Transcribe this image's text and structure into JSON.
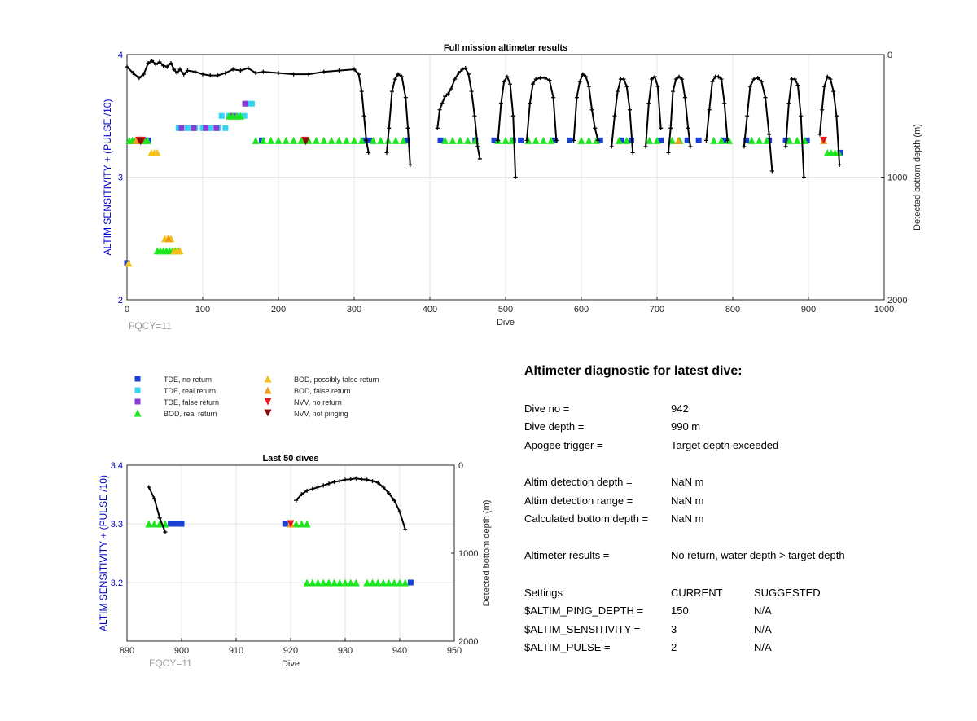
{
  "colors": {
    "axis_left": "#0000cc",
    "grid": "#e6e6e6",
    "fqcy": "#a0a0a0",
    "depth_curve": "#000000",
    "TDE, no return": "#1a3fd6",
    "TDE, real return": "#33d6f2",
    "TDE, false return": "#8a3ad6",
    "BOD, real return": "#1ee61e",
    "BOD, possibly false return": "#f2c21a",
    "BOD, false return": "#f29a1a",
    "NVV, no return": "#e61a1a",
    "NVV, not pinging": "#8a0a0a"
  },
  "legend": [
    {
      "label": "TDE, no return",
      "icon": "square"
    },
    {
      "label": "TDE, real return",
      "icon": "square"
    },
    {
      "label": "TDE, false return",
      "icon": "square"
    },
    {
      "label": "BOD, real return",
      "icon": "triangle-up"
    },
    {
      "label": "BOD, possibly false return",
      "icon": "triangle-up"
    },
    {
      "label": "BOD, false return",
      "icon": "triangle-up"
    },
    {
      "label": "NVV, no return",
      "icon": "triangle-down"
    },
    {
      "label": "NVV, not pinging",
      "icon": "triangle-down"
    }
  ],
  "chart_data": [
    {
      "id": "full",
      "type": "scatter",
      "title": "Full mission altimeter results",
      "xlabel": "Dive",
      "ylabel": "ALTIM SENSITIVITY + (PULSE /10)",
      "y2label": "Detected bottom depth (m)",
      "note": "FQCY=11",
      "xlim": [
        0,
        1000
      ],
      "ylim": [
        2,
        4
      ],
      "y2lim": [
        0,
        2000
      ],
      "y2_reversed": true,
      "xticks": [
        "0",
        "100",
        "200",
        "300",
        "400",
        "500",
        "600",
        "700",
        "800",
        "900",
        "1000"
      ],
      "yticks": [
        "2",
        "3",
        "4"
      ],
      "y2ticks": [
        "0",
        "1000",
        "2000"
      ],
      "grid": true,
      "marker_series": [
        {
          "name": "TDE, no return",
          "x": [
            0,
            28,
            178,
            312,
            320,
            370,
            414,
            460,
            485,
            510,
            520,
            565,
            585,
            625,
            653,
            666,
            705,
            740,
            755,
            788,
            818,
            848,
            870,
            898,
            942
          ],
          "y": [
            2.3,
            3.3,
            3.3,
            3.3,
            3.3,
            3.3,
            3.3,
            3.3,
            3.3,
            3.3,
            3.3,
            3.3,
            3.3,
            3.3,
            3.3,
            3.3,
            3.3,
            3.3,
            3.3,
            3.3,
            3.3,
            3.3,
            3.3,
            3.3,
            3.2
          ]
        },
        {
          "name": "TDE, real return",
          "x": [
            68,
            80,
            90,
            100,
            110,
            120,
            130,
            125,
            135,
            145,
            155,
            160,
            165
          ],
          "y": [
            3.4,
            3.4,
            3.4,
            3.4,
            3.4,
            3.4,
            3.4,
            3.5,
            3.5,
            3.5,
            3.5,
            3.6,
            3.6
          ]
        },
        {
          "name": "TDE, false return",
          "x": [
            72,
            88,
            104,
            118,
            140,
            156
          ],
          "y": [
            3.4,
            3.4,
            3.4,
            3.4,
            3.5,
            3.6
          ]
        },
        {
          "name": "BOD, real return",
          "x": [
            3,
            7,
            11,
            15,
            19,
            23,
            27,
            40,
            44,
            48,
            52,
            56,
            60,
            64,
            68,
            135,
            140,
            145,
            150,
            170,
            180,
            190,
            200,
            210,
            220,
            230,
            240,
            250,
            260,
            270,
            280,
            290,
            300,
            310,
            325,
            335,
            345,
            355,
            365,
            420,
            430,
            440,
            450,
            460,
            490,
            500,
            508,
            530,
            540,
            550,
            560,
            600,
            610,
            620,
            650,
            660,
            690,
            700,
            720,
            730,
            775,
            785,
            795,
            825,
            835,
            845,
            875,
            885,
            895,
            925,
            930,
            935,
            940
          ],
          "y": [
            3.3,
            3.3,
            3.3,
            3.3,
            3.3,
            3.3,
            3.3,
            2.4,
            2.4,
            2.4,
            2.4,
            2.4,
            2.4,
            2.4,
            2.4,
            3.5,
            3.5,
            3.5,
            3.5,
            3.3,
            3.3,
            3.3,
            3.3,
            3.3,
            3.3,
            3.3,
            3.3,
            3.3,
            3.3,
            3.3,
            3.3,
            3.3,
            3.3,
            3.3,
            3.3,
            3.3,
            3.3,
            3.3,
            3.3,
            3.3,
            3.3,
            3.3,
            3.3,
            3.3,
            3.3,
            3.3,
            3.3,
            3.3,
            3.3,
            3.3,
            3.3,
            3.3,
            3.3,
            3.3,
            3.3,
            3.3,
            3.3,
            3.3,
            3.3,
            3.3,
            3.3,
            3.3,
            3.3,
            3.3,
            3.3,
            3.3,
            3.3,
            3.3,
            3.3,
            3.2,
            3.2,
            3.2,
            3.2
          ]
        },
        {
          "name": "BOD, possibly false return",
          "x": [
            2,
            32,
            36,
            40,
            50,
            54,
            58,
            62,
            66,
            70
          ],
          "y": [
            2.3,
            3.2,
            3.2,
            3.2,
            2.5,
            2.5,
            2.5,
            2.4,
            2.4,
            2.4
          ]
        },
        {
          "name": "BOD, false return",
          "x": [
            12,
            55,
            728,
            920
          ],
          "y": [
            3.3,
            2.5,
            3.3,
            3.3
          ]
        },
        {
          "name": "NVV, no return",
          "x": [
            16,
            20,
            235,
            920
          ],
          "y": [
            3.3,
            3.3,
            3.3,
            3.3
          ]
        },
        {
          "name": "NVV, not pinging",
          "x": [
            18,
            236
          ],
          "y": [
            3.29,
            3.29
          ]
        }
      ],
      "depth_curve": {
        "x": [
          0,
          8,
          16,
          22,
          28,
          33,
          38,
          43,
          48,
          53,
          58,
          62,
          66,
          70,
          75,
          80,
          90,
          100,
          110,
          120,
          130,
          140,
          150,
          160,
          170,
          180,
          200,
          220,
          240,
          260,
          280,
          300,
          306,
          310,
          313,
          316,
          319,
          null,
          343,
          346,
          350,
          354,
          358,
          363,
          368,
          371,
          374,
          null,
          410,
          413,
          416,
          420,
          424,
          428,
          433,
          438,
          443,
          447,
          451,
          455,
          459,
          463,
          466,
          null,
          490,
          494,
          498,
          502,
          506,
          510,
          513,
          null,
          528,
          532,
          536,
          540,
          546,
          552,
          558,
          563,
          567,
          null,
          590,
          594,
          598,
          602,
          606,
          610,
          614,
          618,
          622,
          null,
          640,
          644,
          648,
          652,
          656,
          660,
          664,
          668,
          null,
          685,
          689,
          693,
          697,
          701,
          705,
          null,
          715,
          718,
          721,
          725,
          729,
          733,
          737,
          741,
          744,
          null,
          765,
          769,
          773,
          777,
          781,
          785,
          789,
          793,
          null,
          815,
          819,
          823,
          828,
          833,
          838,
          843,
          848,
          852,
          null,
          870,
          874,
          878,
          882,
          886,
          890,
          894,
          null,
          915,
          918,
          921,
          925,
          929,
          933,
          937,
          941
        ],
        "y": [
          100,
          150,
          190,
          160,
          70,
          50,
          80,
          60,
          90,
          100,
          70,
          120,
          150,
          120,
          160,
          130,
          140,
          160,
          170,
          170,
          150,
          120,
          130,
          110,
          150,
          140,
          150,
          160,
          160,
          140,
          130,
          120,
          160,
          300,
          500,
          700,
          800,
          null,
          800,
          600,
          300,
          200,
          160,
          180,
          350,
          600,
          900,
          null,
          600,
          450,
          400,
          340,
          320,
          280,
          200,
          150,
          120,
          110,
          160,
          300,
          500,
          750,
          850,
          null,
          700,
          400,
          220,
          180,
          240,
          500,
          1000,
          null,
          700,
          400,
          240,
          200,
          190,
          190,
          210,
          350,
          700,
          null,
          700,
          350,
          220,
          160,
          180,
          260,
          450,
          600,
          700,
          null,
          750,
          500,
          300,
          200,
          200,
          260,
          450,
          800,
          null,
          750,
          400,
          200,
          180,
          260,
          600,
          null,
          800,
          600,
          300,
          200,
          180,
          200,
          350,
          600,
          750,
          null,
          700,
          450,
          220,
          180,
          180,
          200,
          400,
          700,
          null,
          750,
          500,
          260,
          200,
          190,
          220,
          350,
          650,
          950,
          null,
          750,
          400,
          200,
          200,
          250,
          500,
          1000,
          null,
          650,
          450,
          260,
          180,
          200,
          300,
          500,
          900
        ]
      }
    },
    {
      "id": "last50",
      "type": "scatter",
      "title": "Last 50 dives",
      "xlabel": "Dive",
      "ylabel": "ALTIM SENSITIVITY + (PULSE /10)",
      "y2label": "Detected bottom depth (m)",
      "note": "FQCY=11",
      "xlim": [
        890,
        950
      ],
      "ylim": [
        3.1,
        3.4
      ],
      "y2lim": [
        0,
        2000
      ],
      "y2_reversed": true,
      "xticks": [
        "890",
        "900",
        "910",
        "920",
        "930",
        "940",
        "950"
      ],
      "yticks": [
        "3.2",
        "3.3",
        "3.4"
      ],
      "y2ticks": [
        "0",
        "1000",
        "2000"
      ],
      "grid": true,
      "marker_series": [
        {
          "name": "TDE, no return",
          "x": [
            898,
            899,
            900,
            919,
            942
          ],
          "y": [
            3.3,
            3.3,
            3.3,
            3.3,
            3.2
          ]
        },
        {
          "name": "BOD, real return",
          "x": [
            894,
            895,
            896,
            897,
            921,
            922,
            923,
            923,
            924,
            925,
            926,
            927,
            928,
            929,
            930,
            931,
            932,
            934,
            935,
            936,
            937,
            938,
            939,
            940,
            941
          ],
          "y": [
            3.3,
            3.3,
            3.3,
            3.3,
            3.3,
            3.3,
            3.3,
            3.2,
            3.2,
            3.2,
            3.2,
            3.2,
            3.2,
            3.2,
            3.2,
            3.2,
            3.2,
            3.2,
            3.2,
            3.2,
            3.2,
            3.2,
            3.2,
            3.2,
            3.2
          ]
        },
        {
          "name": "BOD, false return",
          "x": [
            920
          ],
          "y": [
            3.3
          ]
        },
        {
          "name": "NVV, no return",
          "x": [
            920
          ],
          "y": [
            3.3
          ]
        }
      ],
      "depth_curve": {
        "x": [
          894,
          895,
          896,
          897,
          null,
          921,
          922,
          923,
          924,
          925,
          926,
          927,
          928,
          929,
          930,
          931,
          932,
          933,
          934,
          935,
          936,
          937,
          938,
          939,
          940,
          941
        ],
        "y": [
          250,
          380,
          600,
          760,
          null,
          400,
          330,
          290,
          270,
          250,
          230,
          210,
          190,
          180,
          165,
          160,
          150,
          160,
          165,
          180,
          200,
          250,
          320,
          400,
          530,
          730
        ]
      }
    }
  ],
  "diagnostic": {
    "title": "Altimeter diagnostic for latest dive:",
    "rows": [
      {
        "label": "Dive no =",
        "value": "942"
      },
      {
        "label": "Dive depth =",
        "value": "990 m"
      },
      {
        "label": "Apogee trigger =",
        "value": "Target depth exceeded"
      },
      {
        "label": "Altim detection depth =",
        "value": "NaN m"
      },
      {
        "label": "Altim detection range =",
        "value": "NaN m"
      },
      {
        "label": "Calculated bottom depth =",
        "value": "NaN m"
      },
      {
        "label": "Altimeter results =",
        "value": "No return, water depth > target depth"
      }
    ],
    "settings": {
      "headers": [
        "Settings",
        "CURRENT",
        "SUGGESTED"
      ],
      "rows": [
        {
          "label": "$ALTIM_PING_DEPTH =",
          "current": "150",
          "suggested": "N/A"
        },
        {
          "label": "$ALTIM_SENSITIVITY =",
          "current": "3",
          "suggested": "N/A"
        },
        {
          "label": "$ALTIM_PULSE =",
          "current": "2",
          "suggested": "N/A"
        }
      ]
    }
  }
}
